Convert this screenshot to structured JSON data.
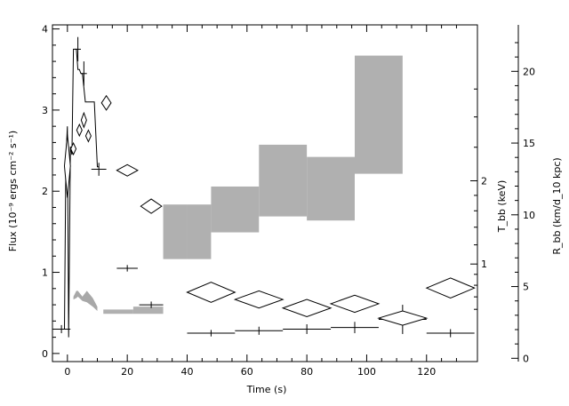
{
  "chart_data": {
    "type": "scatter",
    "xlabel": "Time (s)",
    "ylabel_left": "Flux (10⁻⁹ ergs cm⁻² s⁻¹)",
    "ylabel_right_1": "T_bb (keV)",
    "ylabel_right_2": "R_bb (km/d_10 kpc)",
    "xlim": [
      -5,
      137
    ],
    "ylim": [
      -0.1,
      4.05
    ],
    "kT_axis": {
      "ticks": [
        1,
        2
      ],
      "note": "kT shown on square-root scale"
    },
    "R_axis": {
      "ylim": [
        0,
        23
      ],
      "ticks": [
        0,
        5,
        10,
        15,
        20
      ]
    },
    "x_ticks": [
      0,
      20,
      40,
      60,
      80,
      100,
      120
    ],
    "y_ticks": [
      0,
      1,
      2,
      3,
      4
    ],
    "flux_lightcurve": {
      "t": [
        -4,
        -1,
        -0.5,
        0,
        0.4,
        1,
        1.5,
        2,
        2.5,
        3,
        3.5,
        4,
        4.5,
        5,
        6,
        7,
        8,
        9,
        10,
        10.5
      ],
      "flux": [
        0.3,
        0.3,
        2.4,
        2.8,
        0.2,
        2.55,
        2.45,
        3.75,
        3.75,
        3.75,
        3.5,
        3.5,
        3.45,
        3.45,
        3.1,
        3.1,
        3.1,
        3.1,
        2.3,
        2.3
      ]
    },
    "flux_points": [
      {
        "t": -2,
        "flux": 0.3,
        "dt": 3,
        "dflux": 0.05
      },
      {
        "t": 3.5,
        "flux": 3.75,
        "dt": 1,
        "dflux": 0.15
      },
      {
        "t": 5.5,
        "flux": 3.45,
        "dt": 1,
        "dflux": 0.15
      },
      {
        "t": 10.5,
        "flux": 2.27,
        "dt": 2.5,
        "dflux": 0.08
      },
      {
        "t": 20,
        "flux": 1.05,
        "dt": 3.5,
        "dflux": 0.04
      },
      {
        "t": 28,
        "flux": 0.6,
        "dt": 4,
        "dflux": 0.04
      },
      {
        "t": 48,
        "flux": 0.25,
        "dt": 8,
        "dflux": 0.04
      },
      {
        "t": 64,
        "flux": 0.28,
        "dt": 8,
        "dflux": 0.05
      },
      {
        "t": 80,
        "flux": 0.3,
        "dt": 8,
        "dflux": 0.06
      },
      {
        "t": 96,
        "flux": 0.32,
        "dt": 8,
        "dflux": 0.07
      },
      {
        "t": 112,
        "flux": 0.42,
        "dt": 8,
        "dflux": 0.18
      },
      {
        "t": 128,
        "flux": 0.25,
        "dt": 8,
        "dflux": 0.05
      }
    ],
    "kT_boxes": [
      {
        "t0": 32,
        "t1": 40,
        "kT_lo": 1.05,
        "kT_hi": 1.68
      },
      {
        "t0": 40,
        "t1": 48,
        "kT_lo": 1.05,
        "kT_hi": 1.68
      },
      {
        "t0": 48,
        "t1": 64,
        "kT_lo": 1.34,
        "kT_hi": 1.92
      },
      {
        "t0": 64,
        "t1": 80,
        "kT_lo": 1.53,
        "kT_hi": 2.54
      },
      {
        "t0": 80,
        "t1": 96,
        "kT_lo": 1.48,
        "kT_hi": 2.35
      },
      {
        "t0": 96,
        "t1": 112,
        "kT_lo": 2.1,
        "kT_hi": 4.15
      }
    ],
    "R_band": {
      "t": [
        2,
        3,
        3.5,
        5,
        6.5,
        8.5,
        10
      ],
      "R_lo": [
        4.1,
        4.2,
        4.3,
        4.0,
        3.9,
        3.6,
        3.3
      ],
      "R_hi": [
        4.3,
        4.7,
        4.7,
        4.3,
        4.7,
        4.2,
        3.6
      ]
    },
    "R_low_band": [
      {
        "t0": 12,
        "t1": 22,
        "R_lo": 3.1,
        "R_hi": 3.4
      },
      {
        "t0": 22,
        "t1": 32,
        "R_lo": 3.1,
        "R_hi": 3.6
      }
    ],
    "R_diamonds": [
      {
        "t": 0,
        "R": 13.4,
        "dt": 1,
        "dR": 2.2
      },
      {
        "t": 2,
        "R": 14.6,
        "dt": 0.8,
        "dR": 0.4
      },
      {
        "t": 4,
        "R": 15.9,
        "dt": 0.8,
        "dR": 0.4
      },
      {
        "t": 5.5,
        "R": 16.6,
        "dt": 0.8,
        "dR": 0.5
      },
      {
        "t": 7,
        "R": 15.5,
        "dt": 0.5,
        "dR": 0.4
      },
      {
        "t": 13,
        "R": 17.8,
        "dt": 1.6,
        "dR": 0.5
      },
      {
        "t": 20,
        "R": 13.1,
        "dt": 3.5,
        "dR": 0.4
      },
      {
        "t": 28,
        "R": 10.6,
        "dt": 3.5,
        "dR": 0.5
      },
      {
        "t": 48,
        "R": 4.6,
        "dt": 8,
        "dR": 0.7
      },
      {
        "t": 64,
        "R": 4.1,
        "dt": 8,
        "dR": 0.6
      },
      {
        "t": 80,
        "R": 3.5,
        "dt": 8,
        "dR": 0.6
      },
      {
        "t": 96,
        "R": 3.8,
        "dt": 8,
        "dR": 0.6
      },
      {
        "t": 112,
        "R": 2.8,
        "dt": 8,
        "dR": 0.5
      },
      {
        "t": 128,
        "R": 4.9,
        "dt": 8,
        "dR": 0.7
      }
    ]
  }
}
